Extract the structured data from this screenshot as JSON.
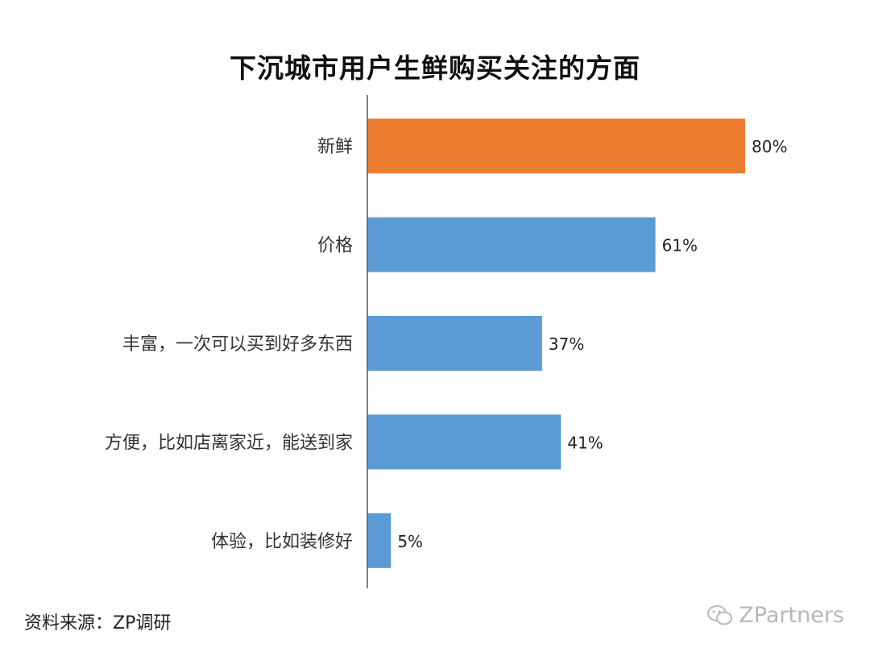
{
  "chart_data": {
    "type": "bar",
    "orientation": "horizontal",
    "title": "下沉城市用户生鲜购买关注的方面",
    "categories": [
      "新鲜",
      "价格",
      "丰富，一次可以买到好多东西",
      "方便，比如店离家近，能送到家",
      "体验，比如装修好"
    ],
    "values": [
      80,
      61,
      37,
      41,
      5
    ],
    "value_labels": [
      "80%",
      "61%",
      "37%",
      "41%",
      "5%"
    ],
    "unit": "%",
    "xlim": [
      0,
      80
    ],
    "highlight_index": 0,
    "colors": {
      "bar": "#5b9bd5",
      "highlight": "#ed7d31",
      "axis": "#595959"
    },
    "grid": false,
    "legend": "none"
  },
  "source": "资料来源：ZP调研",
  "watermark": "ZPartners",
  "watermark_icon": "wechat-icon"
}
